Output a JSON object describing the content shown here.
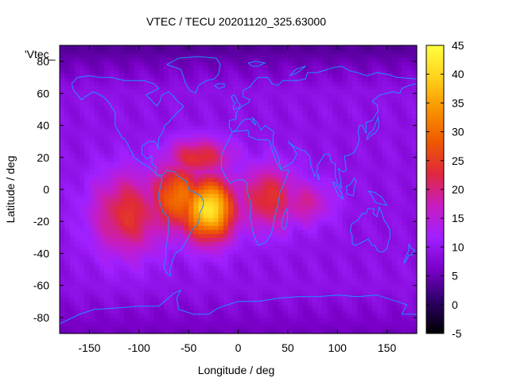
{
  "chart_data": {
    "type": "heatmap",
    "title": "VTEC / TECU 20201120_325.63000",
    "xlabel": "Longitude / deg",
    "ylabel": "Latitude / deg",
    "xlim": [
      -180,
      180
    ],
    "ylim": [
      -90,
      90
    ],
    "xticks": [
      -150,
      -100,
      -50,
      0,
      50,
      100,
      150
    ],
    "yticks": [
      -80,
      -60,
      -40,
      -20,
      0,
      20,
      40,
      60,
      80
    ],
    "legend_label": "'Vtec_",
    "colorbar": {
      "range": [
        -5,
        45
      ],
      "ticks": [
        -5,
        0,
        5,
        10,
        15,
        20,
        25,
        30,
        35,
        40,
        45
      ],
      "palette": [
        "#000000",
        "#2c0066",
        "#7a00c8",
        "#a020ff",
        "#c81dc0",
        "#e0283c",
        "#ee5a00",
        "#f99400",
        "#ffd21c",
        "#ffff40"
      ]
    },
    "field_model": {
      "background_tecu": 9,
      "polar_low_tecu": 3,
      "anomalies": [
        {
          "name": "main-crest-south-atlantic",
          "lon": -30,
          "lat": -12,
          "peak_tecu": 42
        },
        {
          "name": "south-america-crest",
          "lon": -60,
          "lat": -5,
          "peak_tecu": 31
        },
        {
          "name": "east-pacific-extension",
          "lon": -110,
          "lat": -15,
          "peak_tecu": 24
        },
        {
          "name": "africa-extension",
          "lon": 30,
          "lat": -5,
          "peak_tecu": 24
        },
        {
          "name": "north-atlantic-crest",
          "lon": -40,
          "lat": 20,
          "peak_tecu": 24
        },
        {
          "name": "indian-ocean-tail",
          "lon": 65,
          "lat": -8,
          "peak_tecu": 19
        }
      ]
    },
    "overlay": "coastlines",
    "coastline_color": "#1e90ff"
  }
}
